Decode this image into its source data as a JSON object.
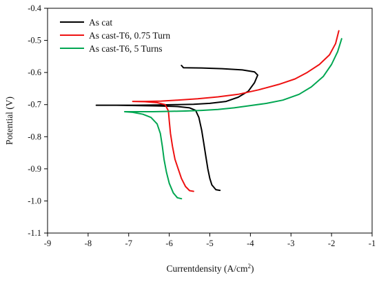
{
  "chart_data": {
    "type": "line",
    "title": "",
    "xlabel": "Currentdensity (A/cm",
    "xlabel_sup": "2",
    "xlabel_suffix": ")",
    "ylabel": "Potential (V)",
    "xlim": [
      -9,
      -1
    ],
    "ylim": [
      -1.1,
      -0.4
    ],
    "x_ticks": [
      -9,
      -8,
      -7,
      -6,
      -5,
      -4,
      -3,
      -2,
      -1
    ],
    "x_tick_labels": [
      "-9",
      "-8",
      "-7",
      "-6",
      "-5",
      "-4",
      "-3",
      "-2",
      "-1"
    ],
    "y_ticks": [
      -0.4,
      -0.5,
      -0.6,
      -0.7,
      -0.8,
      -0.9,
      -1.0,
      -1.1
    ],
    "y_tick_labels": [
      "-0.4",
      "-0.5",
      "-0.6",
      "-0.7",
      "-0.8",
      "-0.9",
      "-1.0",
      "-1.1"
    ],
    "grid": false,
    "legend_position": "top-left",
    "series": [
      {
        "name": "As cat",
        "color": "#000000",
        "points": [
          [
            -4.75,
            -0.967
          ],
          [
            -4.85,
            -0.965
          ],
          [
            -4.95,
            -0.95
          ],
          [
            -5.0,
            -0.93
          ],
          [
            -5.05,
            -0.9
          ],
          [
            -5.1,
            -0.86
          ],
          [
            -5.15,
            -0.82
          ],
          [
            -5.2,
            -0.78
          ],
          [
            -5.27,
            -0.74
          ],
          [
            -5.35,
            -0.718
          ],
          [
            -5.5,
            -0.71
          ],
          [
            -5.8,
            -0.706
          ],
          [
            -6.3,
            -0.704
          ],
          [
            -6.8,
            -0.703
          ],
          [
            -7.3,
            -0.702
          ],
          [
            -7.8,
            -0.702
          ],
          [
            -7.3,
            -0.702
          ],
          [
            -6.8,
            -0.702
          ],
          [
            -6.3,
            -0.701
          ],
          [
            -5.8,
            -0.7
          ],
          [
            -5.4,
            -0.699
          ],
          [
            -5.0,
            -0.696
          ],
          [
            -4.6,
            -0.69
          ],
          [
            -4.3,
            -0.677
          ],
          [
            -4.05,
            -0.658
          ],
          [
            -3.9,
            -0.632
          ],
          [
            -3.82,
            -0.608
          ],
          [
            -3.9,
            -0.598
          ],
          [
            -4.2,
            -0.592
          ],
          [
            -4.7,
            -0.588
          ],
          [
            -5.2,
            -0.586
          ],
          [
            -5.65,
            -0.585
          ],
          [
            -5.7,
            -0.578
          ]
        ]
      },
      {
        "name": "As cast-T6, 0.75 Turn",
        "color": "#ee1111",
        "points": [
          [
            -5.4,
            -0.97
          ],
          [
            -5.5,
            -0.968
          ],
          [
            -5.6,
            -0.955
          ],
          [
            -5.7,
            -0.93
          ],
          [
            -5.78,
            -0.9
          ],
          [
            -5.86,
            -0.87
          ],
          [
            -5.92,
            -0.83
          ],
          [
            -5.97,
            -0.79
          ],
          [
            -6.0,
            -0.75
          ],
          [
            -6.02,
            -0.72
          ],
          [
            -6.1,
            -0.7
          ],
          [
            -6.3,
            -0.694
          ],
          [
            -6.6,
            -0.691
          ],
          [
            -6.9,
            -0.69
          ],
          [
            -6.6,
            -0.69
          ],
          [
            -6.2,
            -0.689
          ],
          [
            -5.8,
            -0.686
          ],
          [
            -5.3,
            -0.682
          ],
          [
            -4.8,
            -0.676
          ],
          [
            -4.3,
            -0.668
          ],
          [
            -3.8,
            -0.654
          ],
          [
            -3.3,
            -0.637
          ],
          [
            -2.9,
            -0.62
          ],
          [
            -2.6,
            -0.6
          ],
          [
            -2.3,
            -0.575
          ],
          [
            -2.05,
            -0.545
          ],
          [
            -1.9,
            -0.51
          ],
          [
            -1.82,
            -0.47
          ]
        ]
      },
      {
        "name": "As cast-T6, 5 Turns",
        "color": "#00a651",
        "points": [
          [
            -5.7,
            -0.993
          ],
          [
            -5.8,
            -0.99
          ],
          [
            -5.9,
            -0.975
          ],
          [
            -6.0,
            -0.945
          ],
          [
            -6.07,
            -0.91
          ],
          [
            -6.13,
            -0.87
          ],
          [
            -6.17,
            -0.83
          ],
          [
            -6.22,
            -0.79
          ],
          [
            -6.3,
            -0.76
          ],
          [
            -6.45,
            -0.74
          ],
          [
            -6.65,
            -0.73
          ],
          [
            -6.9,
            -0.724
          ],
          [
            -7.1,
            -0.722
          ],
          [
            -6.8,
            -0.722
          ],
          [
            -6.4,
            -0.722
          ],
          [
            -6.0,
            -0.721
          ],
          [
            -5.6,
            -0.72
          ],
          [
            -5.2,
            -0.718
          ],
          [
            -4.8,
            -0.715
          ],
          [
            -4.4,
            -0.71
          ],
          [
            -4.0,
            -0.703
          ],
          [
            -3.6,
            -0.696
          ],
          [
            -3.2,
            -0.686
          ],
          [
            -2.8,
            -0.668
          ],
          [
            -2.5,
            -0.645
          ],
          [
            -2.2,
            -0.612
          ],
          [
            -2.0,
            -0.575
          ],
          [
            -1.85,
            -0.535
          ],
          [
            -1.75,
            -0.495
          ]
        ]
      }
    ]
  }
}
